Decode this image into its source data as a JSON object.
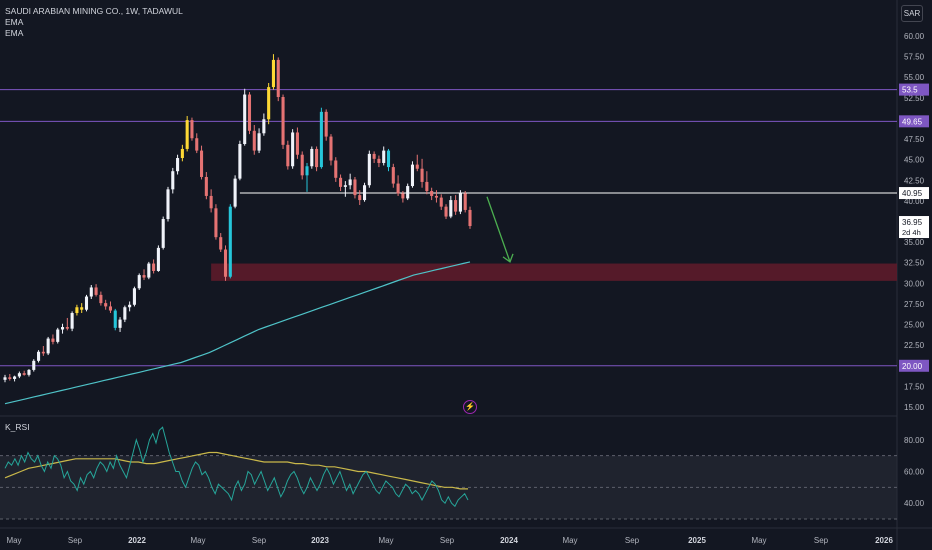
{
  "legend": {
    "title": "SAUDI ARABIAN MINING CO., 1W, TADAWUL",
    "ema1": "EMA",
    "ema2": "EMA"
  },
  "currency": "SAR",
  "rsi_label": "K_RSI",
  "flash_icon": "lightning-icon",
  "colors": {
    "background": "#131722",
    "up": "#f0f3fa",
    "down": "#e57373",
    "highlight_yellow": "#fdd835",
    "highlight_cyan": "#26c6da",
    "ema": "#4fc3c8",
    "level_line": "#7e57c2",
    "support_line": "#ffffff",
    "zone": "#5d1b2a",
    "arrow": "#4caf50",
    "rsi": "#26a69a",
    "rsi_ma": "#c9b84a"
  },
  "chart_data": {
    "type": "candlestick",
    "title": "SAUDI ARABIAN MINING CO., 1W, TADAWUL",
    "ylim": [
      15,
      60
    ],
    "y_ticks": [
      "15.00",
      "17.50",
      "20.00",
      "22.50",
      "25.00",
      "27.50",
      "30.00",
      "32.50",
      "35.00",
      "37.50",
      "40.00",
      "42.50",
      "45.00",
      "47.50",
      "50.00",
      "52.50",
      "55.00",
      "57.50",
      "60.00"
    ],
    "x_ticks": [
      "May",
      "Sep",
      "2022",
      "May",
      "Sep",
      "2023",
      "May",
      "Sep",
      "2024",
      "May",
      "Sep",
      "2025",
      "May",
      "Sep",
      "2026"
    ],
    "horizontal_levels": [
      {
        "label": "53.5",
        "value": 53.5
      },
      {
        "label": "49.65",
        "value": 49.65
      },
      {
        "label": "20.00",
        "value": 20.0
      }
    ],
    "support_line": {
      "label": "40.95",
      "value": 40.95,
      "from_week": 49
    },
    "last_price": {
      "label": "36.95",
      "countdown": "2d 4h"
    },
    "demand_zone": {
      "low": 30.3,
      "high": 32.4,
      "from_week": 43
    },
    "projection_arrow": {
      "from_value": 40.5,
      "to_value": 32.6
    },
    "candles": [
      [
        18.3,
        18.9,
        18.0,
        18.6
      ],
      [
        18.6,
        19.0,
        18.2,
        18.4
      ],
      [
        18.4,
        18.8,
        18.1,
        18.7
      ],
      [
        18.7,
        19.3,
        18.5,
        19.1
      ],
      [
        19.1,
        19.4,
        18.8,
        18.9
      ],
      [
        18.9,
        19.6,
        18.7,
        19.5
      ],
      [
        19.5,
        20.8,
        19.3,
        20.6
      ],
      [
        20.6,
        21.9,
        20.4,
        21.7
      ],
      [
        21.7,
        22.4,
        21.2,
        21.5
      ],
      [
        21.5,
        23.5,
        21.3,
        23.3
      ],
      [
        23.3,
        23.8,
        22.6,
        22.9
      ],
      [
        22.9,
        24.6,
        22.7,
        24.4
      ],
      [
        24.4,
        25.1,
        23.9,
        24.7
      ],
      [
        24.7,
        25.8,
        24.3,
        24.5
      ],
      [
        24.5,
        26.6,
        24.2,
        26.4
      ],
      [
        26.4,
        27.4,
        26.1,
        27.1
      ],
      [
        27.1,
        27.6,
        26.4,
        26.8
      ],
      [
        26.8,
        28.6,
        26.6,
        28.4
      ],
      [
        28.4,
        29.8,
        28.1,
        29.5
      ],
      [
        29.5,
        29.9,
        28.4,
        28.6
      ],
      [
        28.6,
        29.0,
        27.3,
        27.6
      ],
      [
        27.6,
        28.0,
        26.8,
        27.2
      ],
      [
        27.2,
        27.8,
        26.4,
        26.7
      ],
      [
        26.7,
        26.9,
        24.3,
        24.6
      ],
      [
        24.6,
        25.9,
        24.1,
        25.6
      ],
      [
        25.6,
        27.3,
        25.3,
        27.1
      ],
      [
        27.1,
        27.8,
        26.6,
        27.4
      ],
      [
        27.4,
        29.6,
        27.2,
        29.4
      ],
      [
        29.4,
        31.2,
        29.2,
        31.0
      ],
      [
        31.0,
        31.7,
        30.4,
        30.7
      ],
      [
        30.7,
        32.6,
        30.5,
        32.4
      ],
      [
        32.4,
        32.9,
        31.2,
        31.5
      ],
      [
        31.5,
        34.6,
        31.4,
        34.3
      ],
      [
        34.3,
        38.1,
        34.1,
        37.8
      ],
      [
        37.8,
        41.7,
        37.5,
        41.4
      ],
      [
        41.4,
        44.0,
        40.9,
        43.6
      ],
      [
        43.6,
        45.6,
        43.2,
        45.2
      ],
      [
        45.2,
        46.8,
        44.8,
        46.3
      ],
      [
        46.3,
        50.3,
        46.0,
        49.8
      ],
      [
        49.8,
        50.1,
        47.3,
        47.6
      ],
      [
        47.6,
        48.2,
        45.8,
        46.1
      ],
      [
        46.1,
        46.7,
        42.6,
        42.9
      ],
      [
        42.9,
        43.5,
        40.2,
        40.6
      ],
      [
        40.6,
        41.4,
        38.6,
        39.1
      ],
      [
        39.1,
        39.6,
        35.3,
        35.6
      ],
      [
        35.6,
        36.1,
        33.8,
        34.1
      ],
      [
        34.1,
        34.6,
        30.3,
        30.8
      ],
      [
        30.8,
        39.6,
        30.6,
        39.3
      ],
      [
        39.3,
        43.1,
        39.1,
        42.7
      ],
      [
        42.7,
        47.3,
        42.5,
        46.9
      ],
      [
        46.9,
        53.6,
        46.7,
        52.9
      ],
      [
        52.9,
        53.2,
        48.1,
        48.5
      ],
      [
        48.5,
        49.2,
        45.6,
        46.1
      ],
      [
        46.1,
        48.8,
        45.8,
        48.2
      ],
      [
        48.2,
        50.6,
        47.9,
        49.9
      ],
      [
        49.9,
        54.3,
        49.3,
        53.8
      ],
      [
        53.8,
        57.8,
        53.5,
        57.1
      ],
      [
        57.1,
        57.4,
        52.1,
        52.6
      ],
      [
        52.6,
        52.9,
        46.3,
        46.8
      ],
      [
        46.8,
        47.3,
        43.8,
        44.2
      ],
      [
        44.2,
        48.7,
        43.9,
        48.3
      ],
      [
        48.3,
        48.9,
        45.1,
        45.6
      ],
      [
        45.6,
        46.0,
        42.6,
        43.1
      ],
      [
        43.1,
        44.6,
        41.1,
        44.2
      ],
      [
        44.2,
        46.6,
        43.9,
        46.3
      ],
      [
        46.3,
        46.6,
        43.6,
        44.1
      ],
      [
        44.1,
        51.3,
        43.9,
        50.8
      ],
      [
        50.8,
        51.1,
        47.3,
        47.8
      ],
      [
        47.8,
        48.1,
        44.3,
        44.9
      ],
      [
        44.9,
        45.3,
        42.3,
        42.8
      ],
      [
        42.8,
        43.2,
        41.2,
        41.7
      ],
      [
        41.7,
        42.4,
        40.5,
        41.9
      ],
      [
        41.9,
        43.3,
        41.4,
        42.6
      ],
      [
        42.6,
        42.9,
        40.3,
        40.7
      ],
      [
        40.7,
        41.3,
        39.5,
        40.1
      ],
      [
        40.1,
        42.2,
        39.9,
        41.9
      ],
      [
        41.9,
        46.1,
        41.6,
        45.7
      ],
      [
        45.7,
        46.0,
        44.6,
        45.1
      ],
      [
        45.1,
        45.5,
        44.1,
        44.6
      ],
      [
        44.6,
        46.6,
        44.3,
        46.1
      ],
      [
        46.1,
        46.3,
        43.6,
        44.1
      ],
      [
        44.1,
        44.5,
        41.6,
        42.1
      ],
      [
        42.1,
        43.1,
        40.6,
        40.9
      ],
      [
        40.9,
        41.2,
        39.8,
        40.3
      ],
      [
        40.3,
        42.1,
        40.1,
        41.8
      ],
      [
        41.8,
        44.8,
        41.6,
        44.4
      ],
      [
        44.4,
        45.6,
        43.6,
        43.9
      ],
      [
        43.9,
        45.1,
        41.6,
        42.3
      ],
      [
        42.3,
        43.6,
        40.8,
        41.2
      ],
      [
        41.2,
        41.6,
        40.1,
        40.6
      ],
      [
        40.6,
        41.3,
        39.8,
        40.4
      ],
      [
        40.4,
        40.8,
        38.9,
        39.3
      ],
      [
        39.3,
        39.6,
        37.8,
        38.1
      ],
      [
        38.1,
        40.6,
        37.9,
        40.1
      ],
      [
        40.1,
        40.7,
        38.3,
        38.7
      ],
      [
        38.7,
        41.3,
        38.4,
        40.9
      ],
      [
        40.9,
        41.2,
        38.6,
        38.9
      ],
      [
        38.9,
        39.3,
        36.6,
        36.95
      ]
    ],
    "ema_series": [
      15.4,
      15.6,
      15.8,
      16.0,
      16.2,
      16.4,
      16.6,
      16.8,
      17.0,
      17.2,
      17.4,
      17.6,
      17.8,
      18.0,
      18.2,
      18.4,
      18.6,
      18.8,
      19.0,
      19.2,
      19.4,
      19.6,
      19.8,
      20.0,
      20.2,
      20.4,
      20.7,
      21.0,
      21.3,
      21.6,
      22.0,
      22.4,
      22.8,
      23.2,
      23.6,
      24.0,
      24.4,
      24.7,
      25.0,
      25.3,
      25.6,
      25.9,
      26.2,
      26.5,
      26.8,
      27.1,
      27.4,
      27.7,
      28.0,
      28.3,
      28.6,
      28.9,
      29.2,
      29.5,
      29.8,
      30.1,
      30.4,
      30.7,
      31.0,
      31.2,
      31.4,
      31.6,
      31.8,
      32.0,
      32.2,
      32.4,
      32.6
    ],
    "rsi": {
      "ylim": [
        30,
        90
      ],
      "y_ticks": [
        "40.00",
        "60.00",
        "80.00"
      ],
      "bands": [
        70,
        50,
        30
      ],
      "values": [
        62,
        66,
        64,
        68,
        64,
        70,
        66,
        72,
        68,
        66,
        70,
        64,
        60,
        66,
        62,
        70,
        68,
        64,
        56,
        60,
        54,
        52,
        48,
        56,
        52,
        58,
        60,
        56,
        62,
        66,
        64,
        60,
        66,
        62,
        70,
        64,
        60,
        56,
        64,
        72,
        80,
        74,
        66,
        72,
        80,
        84,
        78,
        86,
        88,
        80,
        72,
        66,
        60,
        60,
        54,
        50,
        56,
        62,
        66,
        64,
        58,
        60,
        56,
        50,
        46,
        52,
        50,
        48,
        46,
        42,
        50,
        54,
        48,
        52,
        60,
        58,
        52,
        56,
        60,
        54,
        48,
        52,
        56,
        50,
        44,
        48,
        54,
        58,
        60,
        56,
        50,
        46,
        50,
        56,
        52,
        48,
        52,
        58,
        62,
        58,
        52,
        56,
        60,
        54,
        48,
        52,
        46,
        50,
        54,
        58,
        60,
        56,
        52,
        48,
        46,
        50,
        54,
        52,
        50,
        46,
        44,
        48,
        52,
        50,
        46,
        48,
        46,
        42,
        46,
        50,
        54,
        52,
        48,
        42,
        40,
        44,
        40,
        38,
        42,
        44,
        46,
        42
      ],
      "ma_values": [
        56,
        58,
        60,
        62,
        63,
        64,
        65,
        66,
        67,
        68,
        68,
        68,
        68,
        68,
        68,
        67,
        66,
        66,
        65,
        65,
        66,
        67,
        68,
        69,
        70,
        71,
        72,
        72,
        71,
        70,
        69,
        68,
        67,
        66,
        66,
        66,
        66,
        65,
        65,
        64,
        64,
        63,
        63,
        62,
        61,
        60,
        60,
        59,
        58,
        57,
        56,
        55,
        54,
        53,
        52,
        51,
        50,
        50,
        49,
        49
      ]
    }
  }
}
